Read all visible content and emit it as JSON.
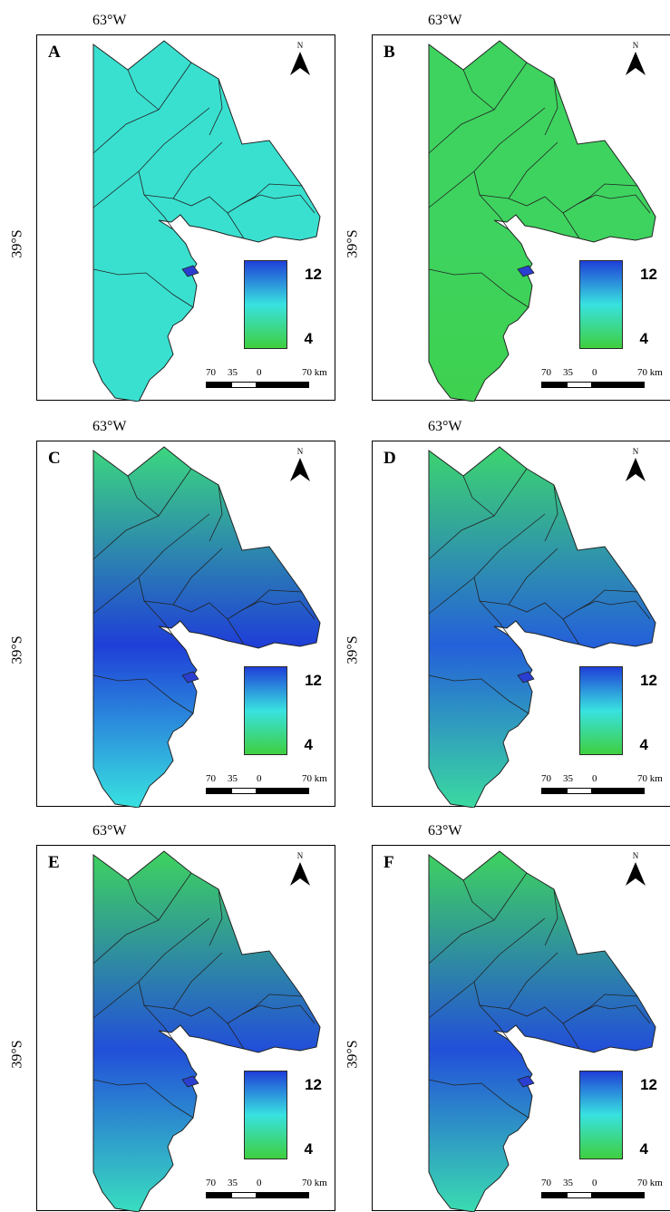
{
  "coordinates": {
    "lon": "63°W",
    "lat": "39°S"
  },
  "legend": {
    "max": "12",
    "min": "4",
    "color_max": "#1f3fd8",
    "color_mid": "#38e2e0",
    "color_min": "#3fcf3f"
  },
  "scale": {
    "t70": "70",
    "t35": "35",
    "t0": "0",
    "tkm": "70 km"
  },
  "north": "N",
  "panels": [
    {
      "label": "A",
      "level_north": 0.45,
      "level_center": 0.45,
      "level_south": 0.45
    },
    {
      "label": "B",
      "level_north": 0.1,
      "level_center": 0.1,
      "level_south": 0.05
    },
    {
      "label": "C",
      "level_north": 0.2,
      "level_center": 1.0,
      "level_south": 0.5
    },
    {
      "label": "D",
      "level_north": 0.15,
      "level_center": 0.9,
      "level_south": 0.3
    },
    {
      "label": "E",
      "level_north": 0.1,
      "level_center": 0.95,
      "level_south": 0.4
    },
    {
      "label": "F",
      "level_north": 0.1,
      "level_center": 0.95,
      "level_south": 0.35
    }
  ]
}
